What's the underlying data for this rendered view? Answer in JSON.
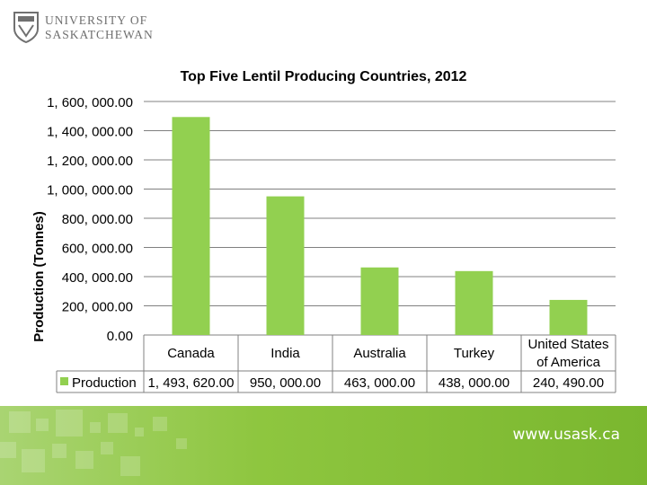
{
  "header": {
    "logo_line1": "UNIVERSITY OF",
    "logo_line2": "SASKATCHEWAN"
  },
  "chart_data": {
    "type": "bar",
    "title": "Top Five Lentil Producing Countries, 2012",
    "ylabel": "Production (Tonnes)",
    "xlabel": "",
    "ylim": [
      0,
      1600000
    ],
    "y_ticks": [
      "0.00",
      "200, 000.00",
      "400, 000.00",
      "600, 000.00",
      "800, 000.00",
      "1, 000, 000.00",
      "1, 200, 000.00",
      "1, 400, 000.00",
      "1, 600, 000.00"
    ],
    "categories": [
      "Canada",
      "India",
      "Australia",
      "Turkey",
      "United States of America"
    ],
    "series": [
      {
        "name": "Production",
        "values": [
          1493620,
          950000,
          463000,
          438000,
          240490
        ],
        "labels": [
          "1, 493, 620.00",
          "950, 000.00",
          "463, 000.00",
          "438, 000.00",
          "240, 490.00"
        ]
      }
    ],
    "grid": true,
    "legend": "data-table-left",
    "colors": {
      "bar": "#92d050",
      "grid": "#808080"
    }
  },
  "footer": {
    "url": "www.usask.ca",
    "color": "#8ec63f"
  }
}
